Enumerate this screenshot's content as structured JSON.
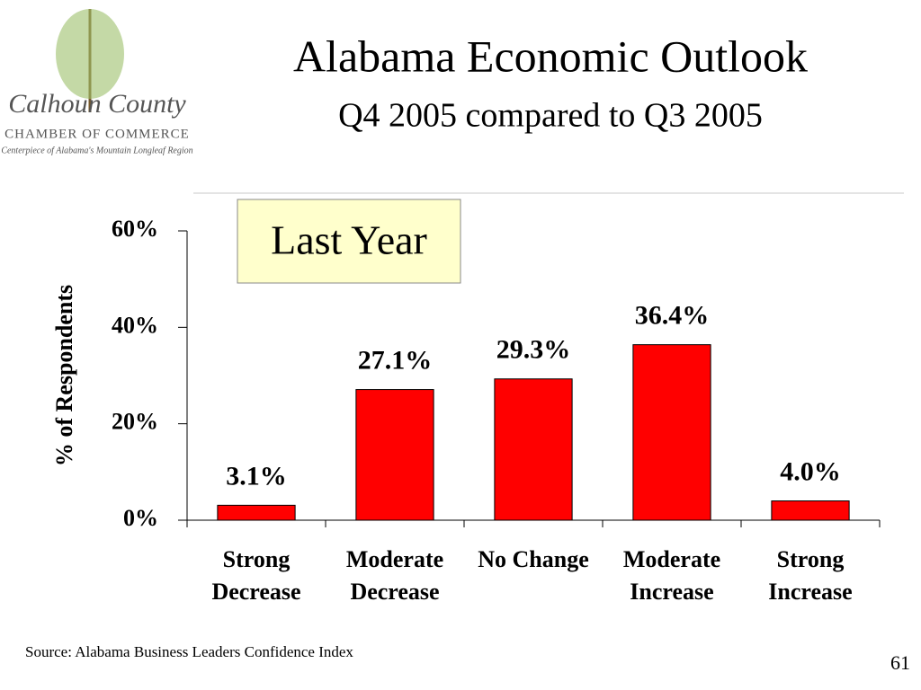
{
  "chart_data": {
    "type": "bar",
    "title": "Alabama Economic Outlook",
    "subtitle": "Q4 2005 compared to Q3 2005",
    "y_label": "% of Respondents",
    "annotation": "Last Year",
    "source": "Source: Alabama Business Leaders Confidence Index",
    "categories": [
      "Strong Decrease",
      "Moderate Decrease",
      "No Change",
      "Moderate Increase",
      "Strong Increase"
    ],
    "values": [
      3.1,
      27.1,
      29.3,
      36.4,
      4.0
    ],
    "value_labels": [
      "3.1%",
      "27.1%",
      "29.3%",
      "36.4%",
      "4.0%"
    ],
    "color": "#ff0000",
    "ylim": [
      0,
      60
    ],
    "yticks": [
      {
        "value": 0,
        "label": "0%"
      },
      {
        "value": 20,
        "label": "20%"
      },
      {
        "value": 40,
        "label": "40%"
      },
      {
        "value": 60,
        "label": "60%"
      }
    ],
    "grid": false
  },
  "logo": {
    "name": "Calhoun County",
    "org": "CHAMBER OF COMMERCE",
    "tagline": "Centerpiece of Alabama's Mountain Longleaf Region"
  },
  "page_number": "61"
}
